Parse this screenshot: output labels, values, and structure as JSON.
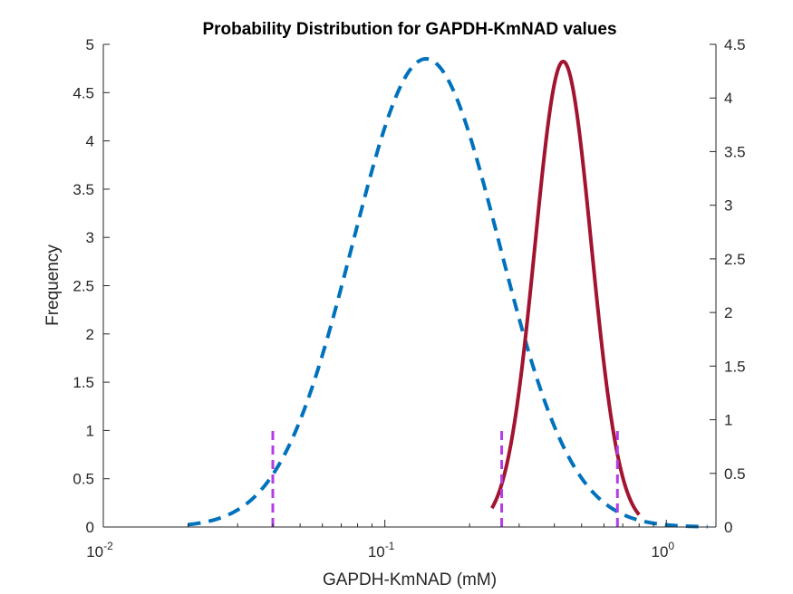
{
  "chart_data": {
    "type": "line",
    "title": "Probability Distribution for GAPDH-KmNAD values",
    "xlabel": "GAPDH-KmNAD (mM)",
    "ylabel": "Frequency",
    "xscale": "log",
    "xlim": [
      0.01,
      1.5
    ],
    "xticks": [
      {
        "value": 0.01,
        "base": "10",
        "exp": "-2"
      },
      {
        "value": 0.1,
        "base": "10",
        "exp": "-1"
      },
      {
        "value": 1,
        "base": "10",
        "exp": "0"
      }
    ],
    "ylim_left": [
      0,
      5
    ],
    "yticks_left": [
      "0",
      "0.5",
      "1",
      "1.5",
      "2",
      "2.5",
      "3",
      "3.5",
      "4",
      "4.5",
      "5"
    ],
    "ylim_right": [
      0,
      4.5
    ],
    "yticks_right": [
      "0",
      "0.5",
      "1",
      "1.5",
      "2",
      "2.5",
      "3",
      "3.5",
      "4",
      "4.5"
    ],
    "grid": false,
    "series": [
      {
        "style": "dashed",
        "axis": "left",
        "color": "#0072BD",
        "distribution": "lognormal",
        "mode": 0.14,
        "peak": 4.85,
        "sigma_log10": 0.26,
        "x_range": [
          0.02,
          1.4
        ]
      },
      {
        "style": "solid",
        "axis": "right",
        "color": "#A2142F",
        "distribution": "lognormal",
        "mode": 0.43,
        "peak": 4.34,
        "sigma_log10": 0.1,
        "x_range": [
          0.24,
          0.8
        ]
      }
    ],
    "vertical_markers": {
      "color": "#B23DE6",
      "style": "dashed",
      "x": [
        0.04,
        0.26,
        0.67
      ],
      "height": 1
    }
  }
}
